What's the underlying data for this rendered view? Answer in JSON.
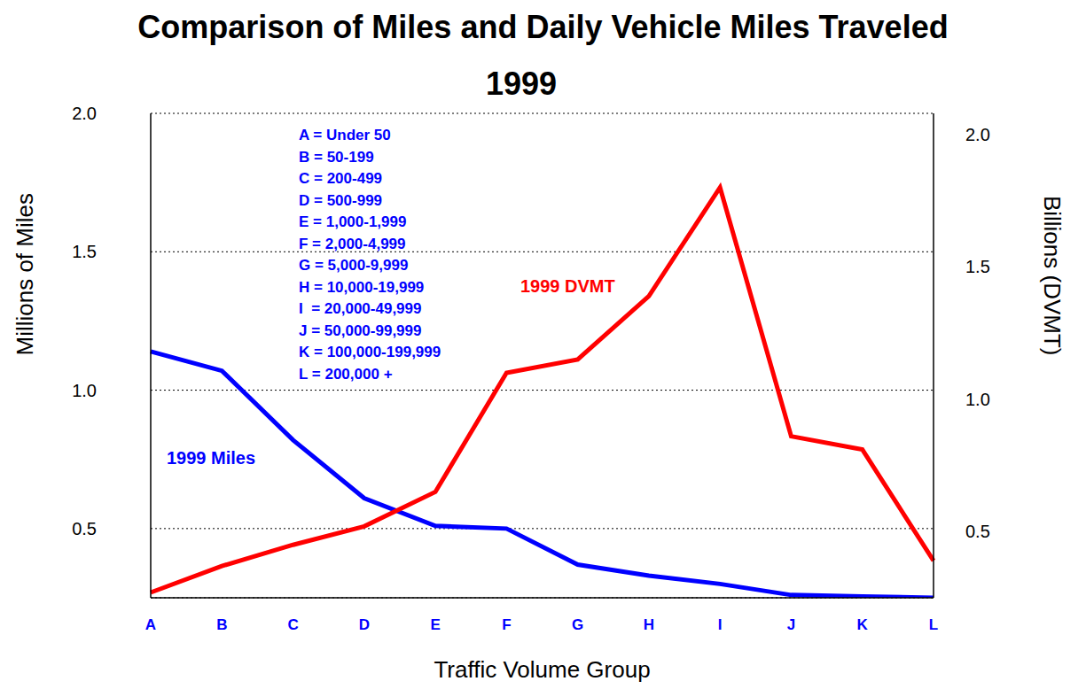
{
  "chart_data": {
    "type": "line",
    "title": "Comparison of Miles and Daily Vehicle Miles Traveled",
    "subtitle": "1999",
    "x_label": "Traffic Volume Group",
    "y_label": "Millions of Miles",
    "y2_label": "Billions (DVMT)",
    "categories": [
      "A",
      "B",
      "C",
      "D",
      "E",
      "F",
      "G",
      "H",
      "I",
      "J",
      "K",
      "L"
    ],
    "annotations": [
      "A = Under 50",
      "B = 50-199",
      "C = 200-499",
      "D = 500-999",
      "E = 1,000-1,999",
      "F = 2,000-4,999",
      "G = 5,000-9,999",
      "H = 10,000-19,999",
      "I  = 20,000-49,999",
      "J = 50,000-99,999",
      "K = 100,000-199,999",
      "L = 200,000 +"
    ],
    "series": [
      {
        "name": "1999 Miles",
        "color": "#0000ff",
        "values": [
          1.14,
          1.07,
          0.82,
          0.61,
          0.51,
          0.5,
          0.37,
          0.33,
          0.3,
          0.26,
          0.255,
          0.25
        ]
      },
      {
        "name": "1999 DVMT",
        "color": "#ff0000",
        "axis": "y2",
        "values": [
          0.27,
          0.37,
          0.45,
          0.52,
          0.65,
          1.1,
          1.15,
          1.39,
          1.8,
          0.86,
          0.81,
          0.39
        ]
      }
    ],
    "ylim": [
      0.25,
      2.0
    ],
    "yticks": [
      0.5,
      {
        "value": 1,
        "label": "1.0"
      },
      1.5,
      {
        "value": 2,
        "label": "2.0"
      }
    ],
    "y2lim": [
      0.25,
      2.08
    ],
    "y2ticks": [
      0.5,
      {
        "value": 1,
        "label": "1.0"
      },
      1.5,
      {
        "value": 2,
        "label": "2.0"
      }
    ],
    "grid": true
  }
}
